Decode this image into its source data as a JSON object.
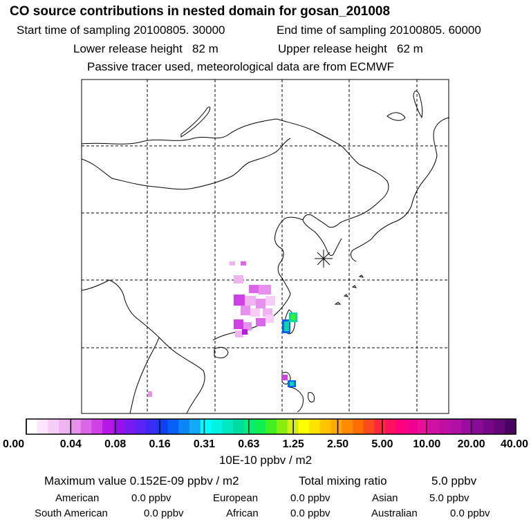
{
  "header": {
    "title": "CO  source contributions in nested domain for gosan_201008",
    "start_label": "Start time of sampling",
    "start_value": "20100805. 30000",
    "end_label": "End time of sampling",
    "end_value": "20100805. 60000",
    "lower_label": "Lower release height",
    "lower_value": "82 m",
    "upper_label": "Upper release height",
    "upper_value": "62 m",
    "note": "Passive tracer used, meteorological data are from ECMWF"
  },
  "chart_data": {
    "type": "heatmap",
    "title": "CO  source contributions in nested domain for gosan_201008",
    "colorbar": {
      "unit_label": "10E-10 ppbv / m2",
      "tick_labels": [
        "0.00",
        "0.04",
        "0.08",
        "0.16",
        "0.31",
        "0.63",
        "1.25",
        "2.50",
        "5.00",
        "10.00",
        "20.00",
        "40.00"
      ],
      "tick_values": [
        0.0,
        0.04,
        0.08,
        0.16,
        0.31,
        0.63,
        1.25,
        2.5,
        5.0,
        10.0,
        20.0,
        40.0
      ],
      "colors": [
        "#ffffff",
        "#fbe6fb",
        "#f6cdf6",
        "#f0b3f2",
        "#e890ee",
        "#dc66ea",
        "#cf40e6",
        "#bb16e8",
        "#9a10ec",
        "#7a1af0",
        "#5a22f4",
        "#3a2cf6",
        "#1040f4",
        "#0660f6",
        "#0a86f6",
        "#10aaf6",
        "#00ffff",
        "#00f4e0",
        "#00e8c0",
        "#00dca0",
        "#00ee78",
        "#10f050",
        "#40f020",
        "#88ee10",
        "#d4ee10",
        "#ffff00",
        "#ffe200",
        "#ffc400",
        "#ffa800",
        "#ff8c00",
        "#ff7000",
        "#ff4a20",
        "#ff2840",
        "#ff1060",
        "#ff0080",
        "#f00090",
        "#e6109c",
        "#d010a4",
        "#c010a4",
        "#b010a4",
        "#9a0ca0",
        "#880a96",
        "#760888",
        "#620678",
        "#4a0460"
      ]
    },
    "receptor": "gosan",
    "max_value_label": "Maximum value",
    "max_value": "0.152E-09 ppbv / m2",
    "total_label": "Total mixing ratio",
    "total_value": "5.0 ppbv",
    "sources": [
      {
        "name": "American",
        "value": "0.0 ppbv"
      },
      {
        "name": "European",
        "value": "0.0 ppbv"
      },
      {
        "name": "Asian",
        "value": "5.0 ppbv"
      },
      {
        "name": "South American",
        "value": "0.0 ppbv"
      },
      {
        "name": "African",
        "value": "0.0 ppbv"
      },
      {
        "name": "Australian",
        "value": "0.0 ppbv"
      }
    ]
  }
}
